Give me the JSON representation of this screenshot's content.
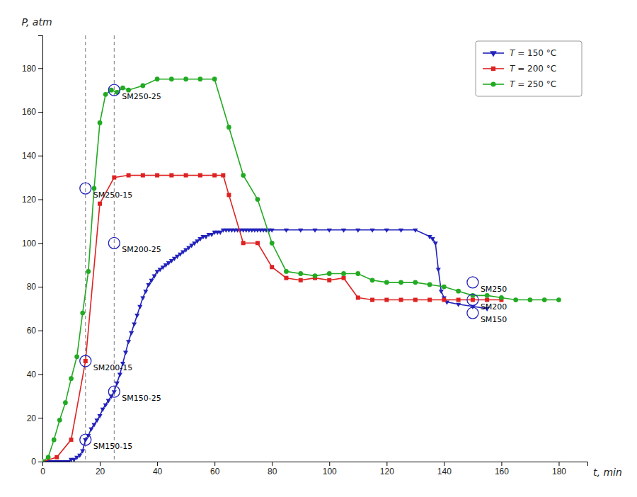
{
  "chart_data": {
    "type": "line",
    "title": "",
    "x_label": "t, min",
    "y_label": "P, atm",
    "xlim": [
      0,
      190
    ],
    "ylim": [
      0,
      195
    ],
    "xticks": [
      0,
      20,
      40,
      60,
      80,
      100,
      120,
      140,
      160,
      180
    ],
    "yticks": [
      0,
      20,
      40,
      60,
      80,
      100,
      120,
      140,
      160,
      180
    ],
    "grid": false,
    "legend": "top-right",
    "vlines": [
      15,
      25
    ],
    "series": [
      {
        "name": "T = 150 °C",
        "color": "#2222bb",
        "marker": "triangle-down",
        "x": [
          0,
          1,
          2,
          3,
          4,
          5,
          6,
          7,
          8,
          9,
          10,
          11,
          12,
          13,
          14,
          15,
          16,
          17,
          18,
          19,
          20,
          21,
          22,
          23,
          24,
          25,
          26,
          27,
          28,
          29,
          30,
          31,
          32,
          33,
          34,
          35,
          36,
          37,
          38,
          39,
          40,
          41,
          42,
          43,
          44,
          45,
          46,
          47,
          48,
          49,
          50,
          51,
          52,
          53,
          54,
          55,
          56,
          57,
          58,
          59,
          60,
          61,
          62,
          63,
          64,
          65,
          66,
          67,
          68,
          69,
          70,
          71,
          72,
          73,
          74,
          75,
          76,
          77,
          78,
          79,
          80,
          85,
          90,
          95,
          100,
          105,
          110,
          115,
          120,
          125,
          130,
          135,
          136,
          137,
          138,
          139,
          140,
          141,
          145,
          150,
          155
        ],
        "values": [
          0,
          0,
          0,
          0,
          0,
          0,
          0,
          0,
          0,
          0,
          1,
          1,
          2,
          3,
          5,
          10,
          12,
          15,
          17,
          19,
          21,
          24,
          26,
          28,
          30,
          32,
          36,
          40,
          45,
          50,
          55,
          59,
          63,
          67,
          71,
          75,
          78,
          81,
          83,
          85,
          87,
          88,
          89,
          90,
          91,
          92,
          93,
          94,
          95,
          96,
          97,
          98,
          99,
          100,
          101,
          102,
          103,
          103,
          104,
          104,
          105,
          105,
          105,
          106,
          106,
          106,
          106,
          106,
          106,
          106,
          106,
          106,
          106,
          106,
          106,
          106,
          106,
          106,
          106,
          106,
          106,
          106,
          106,
          106,
          106,
          106,
          106,
          106,
          106,
          106,
          106,
          103,
          102,
          100,
          88,
          78,
          75,
          73,
          72,
          71,
          70
        ]
      },
      {
        "name": "T = 200 °C",
        "color": "#dd2222",
        "marker": "square",
        "x": [
          0,
          5,
          10,
          15,
          20,
          25,
          30,
          35,
          40,
          45,
          50,
          55,
          60,
          63,
          65,
          70,
          75,
          80,
          85,
          90,
          95,
          100,
          105,
          110,
          115,
          120,
          125,
          130,
          135,
          140,
          145,
          150,
          155,
          160
        ],
        "values": [
          0,
          2,
          10,
          46,
          118,
          130,
          131,
          131,
          131,
          131,
          131,
          131,
          131,
          131,
          122,
          100,
          100,
          89,
          84,
          83,
          84,
          83,
          84,
          75,
          74,
          74,
          74,
          74,
          74,
          74,
          74,
          74,
          74,
          74
        ]
      },
      {
        "name": "T = 250 °C",
        "color": "#22aa22",
        "marker": "circle",
        "x": [
          0,
          2,
          4,
          6,
          8,
          10,
          12,
          14,
          16,
          18,
          20,
          22,
          24,
          26,
          28,
          30,
          35,
          40,
          45,
          50,
          55,
          60,
          65,
          70,
          75,
          80,
          85,
          90,
          95,
          100,
          105,
          110,
          115,
          120,
          125,
          130,
          135,
          140,
          145,
          150,
          155,
          160,
          165,
          170,
          175,
          180
        ],
        "values": [
          0,
          2,
          10,
          19,
          27,
          38,
          48,
          68,
          87,
          125,
          155,
          168,
          170,
          169,
          171,
          170,
          172,
          175,
          175,
          175,
          175,
          175,
          153,
          131,
          120,
          100,
          87,
          86,
          85,
          86,
          86,
          86,
          83,
          82,
          82,
          82,
          81,
          80,
          78,
          76,
          76,
          75,
          74,
          74,
          74,
          74
        ]
      }
    ],
    "annotations": [
      {
        "text": "SM150-15",
        "x": 15,
        "y": 10,
        "color": "#2222bb"
      },
      {
        "text": "SM150-25",
        "x": 25,
        "y": 32,
        "color": "#2222bb"
      },
      {
        "text": "SM200-15",
        "x": 15,
        "y": 46,
        "color": "#2222bb"
      },
      {
        "text": "SM200-25",
        "x": 25,
        "y": 100,
        "color": "#2222bb"
      },
      {
        "text": "SM250-15",
        "x": 15,
        "y": 125,
        "color": "#2222bb"
      },
      {
        "text": "SM250-25",
        "x": 25,
        "y": 170,
        "color": "#2222bb"
      },
      {
        "text": "SM250",
        "x": 150,
        "y": 82,
        "color": "#2222bb"
      },
      {
        "text": "SM200",
        "x": 150,
        "y": 74,
        "color": "#2222bb"
      },
      {
        "text": "SM150",
        "x": 150,
        "y": 68,
        "color": "#2222bb"
      }
    ]
  }
}
